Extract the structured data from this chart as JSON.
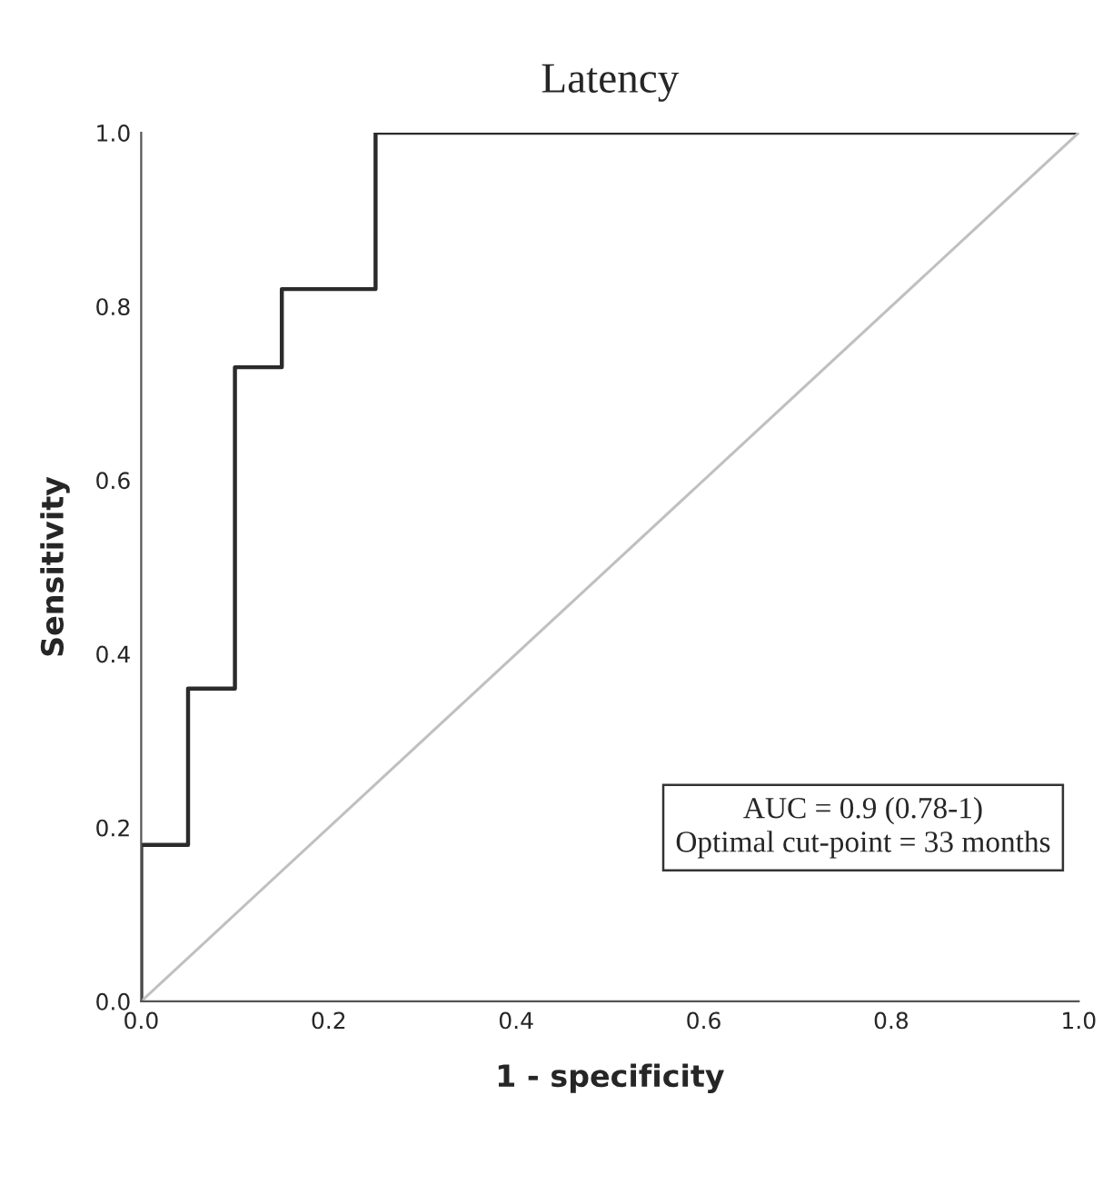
{
  "chart_data": {
    "type": "line",
    "title": "Latency",
    "xlabel": "1 - specificity",
    "ylabel": "Sensitivity",
    "xlim": [
      0,
      1
    ],
    "ylim": [
      0,
      1
    ],
    "xticks": [
      {
        "value": 0,
        "label": "0.0"
      },
      {
        "value": 0.2,
        "label": "0.2"
      },
      {
        "value": 0.4,
        "label": "0.4"
      },
      {
        "value": 0.6,
        "label": "0.6"
      },
      {
        "value": 0.8,
        "label": "0.8"
      },
      {
        "value": 1,
        "label": "1.0"
      }
    ],
    "yticks": [
      {
        "value": 0,
        "label": "0.0"
      },
      {
        "value": 0.2,
        "label": "0.2"
      },
      {
        "value": 0.4,
        "label": "0.4"
      },
      {
        "value": 0.6,
        "label": "0.6"
      },
      {
        "value": 0.8,
        "label": "0.8"
      },
      {
        "value": 1,
        "label": "1.0"
      }
    ],
    "series": [
      {
        "color": "#2b2b2b",
        "x": [
          0,
          0,
          0.05,
          0.05,
          0.1,
          0.1,
          0.15,
          0.15,
          0.25,
          0.25,
          1
        ],
        "values": [
          0,
          0.18,
          0.18,
          0.36,
          0.36,
          0.73,
          0.73,
          0.82,
          0.82,
          1,
          1
        ]
      },
      {
        "color": "#c0c0c0",
        "x": [
          0,
          1
        ],
        "values": [
          0,
          1
        ]
      }
    ],
    "annotations": [
      "AUC = 0.9 (0.78-1)\nOptimal cut-point = 33 months"
    ],
    "grid": false
  }
}
